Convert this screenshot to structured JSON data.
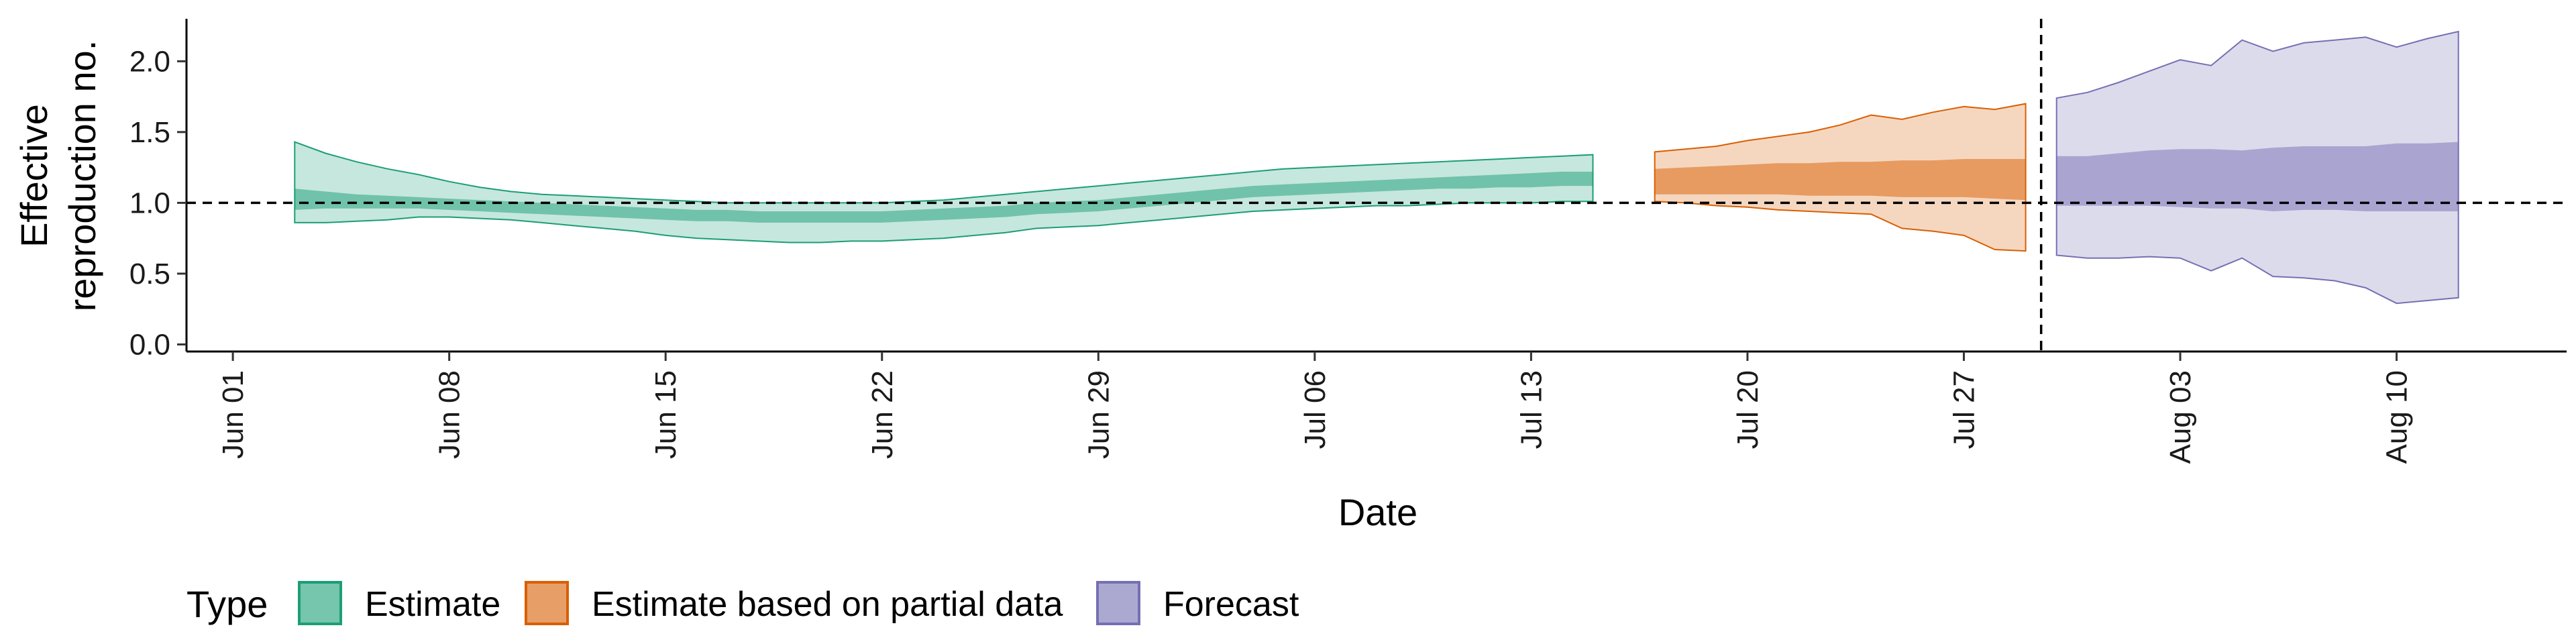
{
  "chart_data": {
    "type": "area",
    "xlabel": "Date",
    "ylabel_lines": [
      "Effective",
      "reproduction no."
    ],
    "x_ticks": [
      "Jun 01",
      "Jun 08",
      "Jun 15",
      "Jun 22",
      "Jun 29",
      "Jul 06",
      "Jul 13",
      "Jul 20",
      "Jul 27",
      "Aug 03",
      "Aug 10"
    ],
    "y_ticks": [
      "0.0",
      "0.5",
      "1.0",
      "1.5",
      "2.0"
    ],
    "ylim": [
      -0.05,
      2.3
    ],
    "xlim_days_from_jun01": [
      -1.5,
      75.5
    ],
    "reference_line_y": 1.0,
    "forecast_start_line": "Jul 29",
    "grid": false,
    "colors": {
      "Estimate": "#1b9e77",
      "Estimate based on partial data": "#d95f02",
      "Forecast": "#7570b3"
    },
    "legend": {
      "title": "Type",
      "position": "bottom",
      "entries": [
        "Estimate",
        "Estimate based on partial data",
        "Forecast"
      ]
    },
    "series": [
      {
        "name": "Estimate",
        "x": [
          "Jun 03",
          "Jun 04",
          "Jun 05",
          "Jun 06",
          "Jun 07",
          "Jun 08",
          "Jun 09",
          "Jun 10",
          "Jun 11",
          "Jun 12",
          "Jun 13",
          "Jun 14",
          "Jun 15",
          "Jun 16",
          "Jun 17",
          "Jun 18",
          "Jun 19",
          "Jun 20",
          "Jun 21",
          "Jun 22",
          "Jun 23",
          "Jun 24",
          "Jun 25",
          "Jun 26",
          "Jun 27",
          "Jun 28",
          "Jun 29",
          "Jun 30",
          "Jul 01",
          "Jul 02",
          "Jul 03",
          "Jul 04",
          "Jul 05",
          "Jul 06",
          "Jul 07",
          "Jul 08",
          "Jul 09",
          "Jul 10",
          "Jul 11",
          "Jul 12",
          "Jul 13",
          "Jul 14",
          "Jul 15"
        ],
        "lower_90": [
          0.86,
          0.86,
          0.87,
          0.88,
          0.9,
          0.9,
          0.89,
          0.88,
          0.86,
          0.84,
          0.82,
          0.8,
          0.77,
          0.75,
          0.74,
          0.73,
          0.72,
          0.72,
          0.73,
          0.73,
          0.74,
          0.75,
          0.77,
          0.79,
          0.82,
          0.83,
          0.84,
          0.86,
          0.88,
          0.9,
          0.92,
          0.94,
          0.95,
          0.96,
          0.97,
          0.98,
          0.98,
          0.99,
          1.0,
          1.0,
          1.0,
          1.01,
          1.01
        ],
        "upper_90": [
          1.43,
          1.35,
          1.29,
          1.24,
          1.2,
          1.15,
          1.11,
          1.08,
          1.06,
          1.05,
          1.04,
          1.03,
          1.02,
          1.01,
          1.0,
          1.0,
          1.0,
          1.0,
          1.0,
          1.0,
          1.01,
          1.02,
          1.04,
          1.06,
          1.08,
          1.1,
          1.12,
          1.14,
          1.16,
          1.18,
          1.2,
          1.22,
          1.24,
          1.25,
          1.26,
          1.27,
          1.28,
          1.29,
          1.3,
          1.31,
          1.32,
          1.33,
          1.34
        ],
        "lower_50": [
          0.95,
          0.96,
          0.96,
          0.96,
          0.96,
          0.95,
          0.94,
          0.93,
          0.92,
          0.91,
          0.9,
          0.89,
          0.88,
          0.87,
          0.87,
          0.86,
          0.86,
          0.86,
          0.86,
          0.86,
          0.87,
          0.88,
          0.89,
          0.9,
          0.92,
          0.93,
          0.94,
          0.96,
          0.98,
          1.0,
          1.02,
          1.04,
          1.05,
          1.06,
          1.07,
          1.08,
          1.09,
          1.1,
          1.1,
          1.11,
          1.11,
          1.12,
          1.12
        ],
        "upper_50": [
          1.1,
          1.08,
          1.06,
          1.05,
          1.04,
          1.03,
          1.02,
          1.01,
          1.0,
          0.99,
          0.98,
          0.97,
          0.96,
          0.95,
          0.95,
          0.94,
          0.94,
          0.94,
          0.94,
          0.94,
          0.95,
          0.96,
          0.97,
          0.98,
          1.0,
          1.01,
          1.02,
          1.04,
          1.06,
          1.08,
          1.1,
          1.12,
          1.13,
          1.14,
          1.15,
          1.16,
          1.17,
          1.18,
          1.19,
          1.2,
          1.21,
          1.22,
          1.22
        ]
      },
      {
        "name": "Estimate based on partial data",
        "x": [
          "Jul 17",
          "Jul 18",
          "Jul 19",
          "Jul 20",
          "Jul 21",
          "Jul 22",
          "Jul 23",
          "Jul 24",
          "Jul 25",
          "Jul 26",
          "Jul 27",
          "Jul 28",
          "Jul 29"
        ],
        "lower_90": [
          1.01,
          1.0,
          0.98,
          0.97,
          0.95,
          0.94,
          0.93,
          0.92,
          0.82,
          0.8,
          0.77,
          0.67,
          0.66
        ],
        "upper_90": [
          1.36,
          1.38,
          1.4,
          1.44,
          1.47,
          1.5,
          1.55,
          1.62,
          1.59,
          1.64,
          1.68,
          1.66,
          1.7
        ],
        "lower_50": [
          1.06,
          1.06,
          1.06,
          1.06,
          1.06,
          1.05,
          1.05,
          1.05,
          1.04,
          1.04,
          1.04,
          1.03,
          1.02
        ],
        "upper_50": [
          1.24,
          1.25,
          1.26,
          1.27,
          1.28,
          1.28,
          1.29,
          1.29,
          1.3,
          1.3,
          1.31,
          1.31,
          1.31
        ]
      },
      {
        "name": "Forecast",
        "x": [
          "Jul 30",
          "Jul 31",
          "Aug 01",
          "Aug 02",
          "Aug 03",
          "Aug 04",
          "Aug 05",
          "Aug 06",
          "Aug 07",
          "Aug 08",
          "Aug 09",
          "Aug 10",
          "Aug 11",
          "Aug 12"
        ],
        "lower_90": [
          0.63,
          0.61,
          0.61,
          0.62,
          0.61,
          0.52,
          0.61,
          0.48,
          0.47,
          0.45,
          0.4,
          0.29,
          0.31,
          0.33
        ],
        "upper_90": [
          1.74,
          1.78,
          1.85,
          1.93,
          2.01,
          1.97,
          2.15,
          2.07,
          2.13,
          2.15,
          2.17,
          2.1,
          2.16,
          2.21
        ],
        "lower_50": [
          0.98,
          0.98,
          0.98,
          0.98,
          0.97,
          0.96,
          0.96,
          0.94,
          0.95,
          0.95,
          0.94,
          0.94,
          0.94,
          0.94
        ],
        "upper_50": [
          1.33,
          1.33,
          1.35,
          1.37,
          1.38,
          1.38,
          1.37,
          1.39,
          1.4,
          1.4,
          1.4,
          1.42,
          1.42,
          1.43
        ]
      }
    ]
  }
}
